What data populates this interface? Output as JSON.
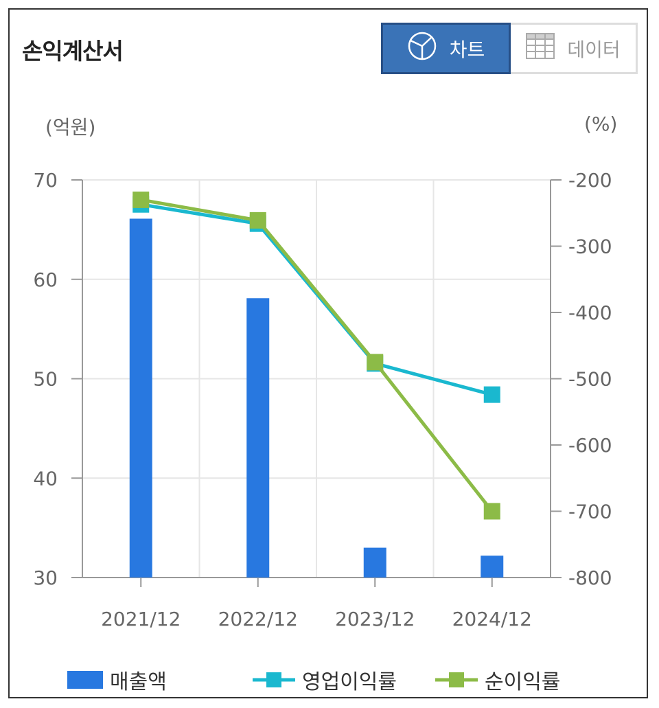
{
  "header": {
    "title": "손익계산서",
    "chart_tab_label": "차트",
    "data_tab_label": "데이터"
  },
  "icons": {
    "chart_tab_icon": "pie-chart-icon",
    "data_tab_icon": "grid-table-icon"
  },
  "colors": {
    "sales": "#2878e0",
    "operating_margin": "#1ab8cf",
    "net_margin": "#8cbb47",
    "active_tab": "#3a73b7"
  },
  "chart_data": {
    "type": "bar",
    "categories": [
      "2021/12",
      "2022/12",
      "2023/12",
      "2024/12"
    ],
    "left_axis": {
      "unit_label": "(억원)",
      "ylim": [
        30,
        70
      ],
      "ticks": [
        "70",
        "60",
        "50",
        "40",
        "30"
      ]
    },
    "right_axis": {
      "unit_label": "(%)",
      "ylim": [
        -800,
        -200
      ],
      "ticks": [
        "-200",
        "-300",
        "-400",
        "-500",
        "-600",
        "-700",
        "-800"
      ]
    },
    "series": [
      {
        "name": "매출액",
        "type": "bar",
        "axis": "left",
        "values": [
          66.1,
          58.1,
          33.0,
          32.2
        ]
      },
      {
        "name": "영업이익률",
        "type": "line",
        "axis": "right",
        "values": [
          -237,
          -266,
          -477,
          -524
        ]
      },
      {
        "name": "순이익률",
        "type": "line",
        "axis": "right",
        "values": [
          -230,
          -261,
          -475,
          -700
        ]
      }
    ],
    "grid": true,
    "legend": "bottom"
  }
}
